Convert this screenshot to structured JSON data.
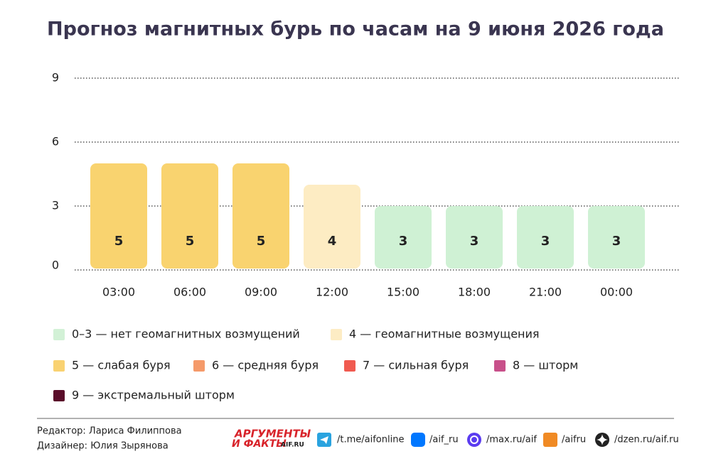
{
  "chart_data": {
    "type": "bar",
    "title": "Прогноз магнитных бурь по часам на 9 июня 2026 года",
    "categories": [
      "03:00",
      "06:00",
      "09:00",
      "12:00",
      "15:00",
      "18:00",
      "21:00",
      "00:00"
    ],
    "values": [
      5,
      5,
      5,
      4,
      3,
      3,
      3,
      3
    ],
    "colors": [
      "#f9d36f",
      "#f9d36f",
      "#f9d36f",
      "#fdecc3",
      "#cff1d4",
      "#cff1d4",
      "#cff1d4",
      "#cff1d4"
    ],
    "ylim": [
      0,
      9
    ],
    "yticks": [
      0,
      3,
      6,
      9
    ],
    "grid": true,
    "legend": [
      {
        "label": "0–3 — нет геомагнитных возмущений",
        "color": "#d2f1d6"
      },
      {
        "label": "4 — геомагнитные возмущения",
        "color": "#fdecc4"
      },
      {
        "label": "5 — слабая буря",
        "color": "#f9d272"
      },
      {
        "label": "6 — средняя буря",
        "color": "#f59a6a"
      },
      {
        "label": "7 — сильная буря",
        "color": "#f05a50"
      },
      {
        "label": "8 — шторм",
        "color": "#c8508a"
      },
      {
        "label": "9 — экстремальный шторм",
        "color": "#5a0c2a"
      }
    ]
  },
  "footer": {
    "editor": "Редактор: Лариса Филиппова",
    "designer": "Дизайнер: Юлия Зырянова",
    "logo": [
      "АРГУМЕНТЫ",
      "И ФАКТЫ",
      "AIF.RU"
    ],
    "links": [
      "/t.me/aifonline",
      "/aif_ru",
      "/max.ru/aif",
      "/aifru",
      "/dzen.ru/aif.ru"
    ]
  }
}
